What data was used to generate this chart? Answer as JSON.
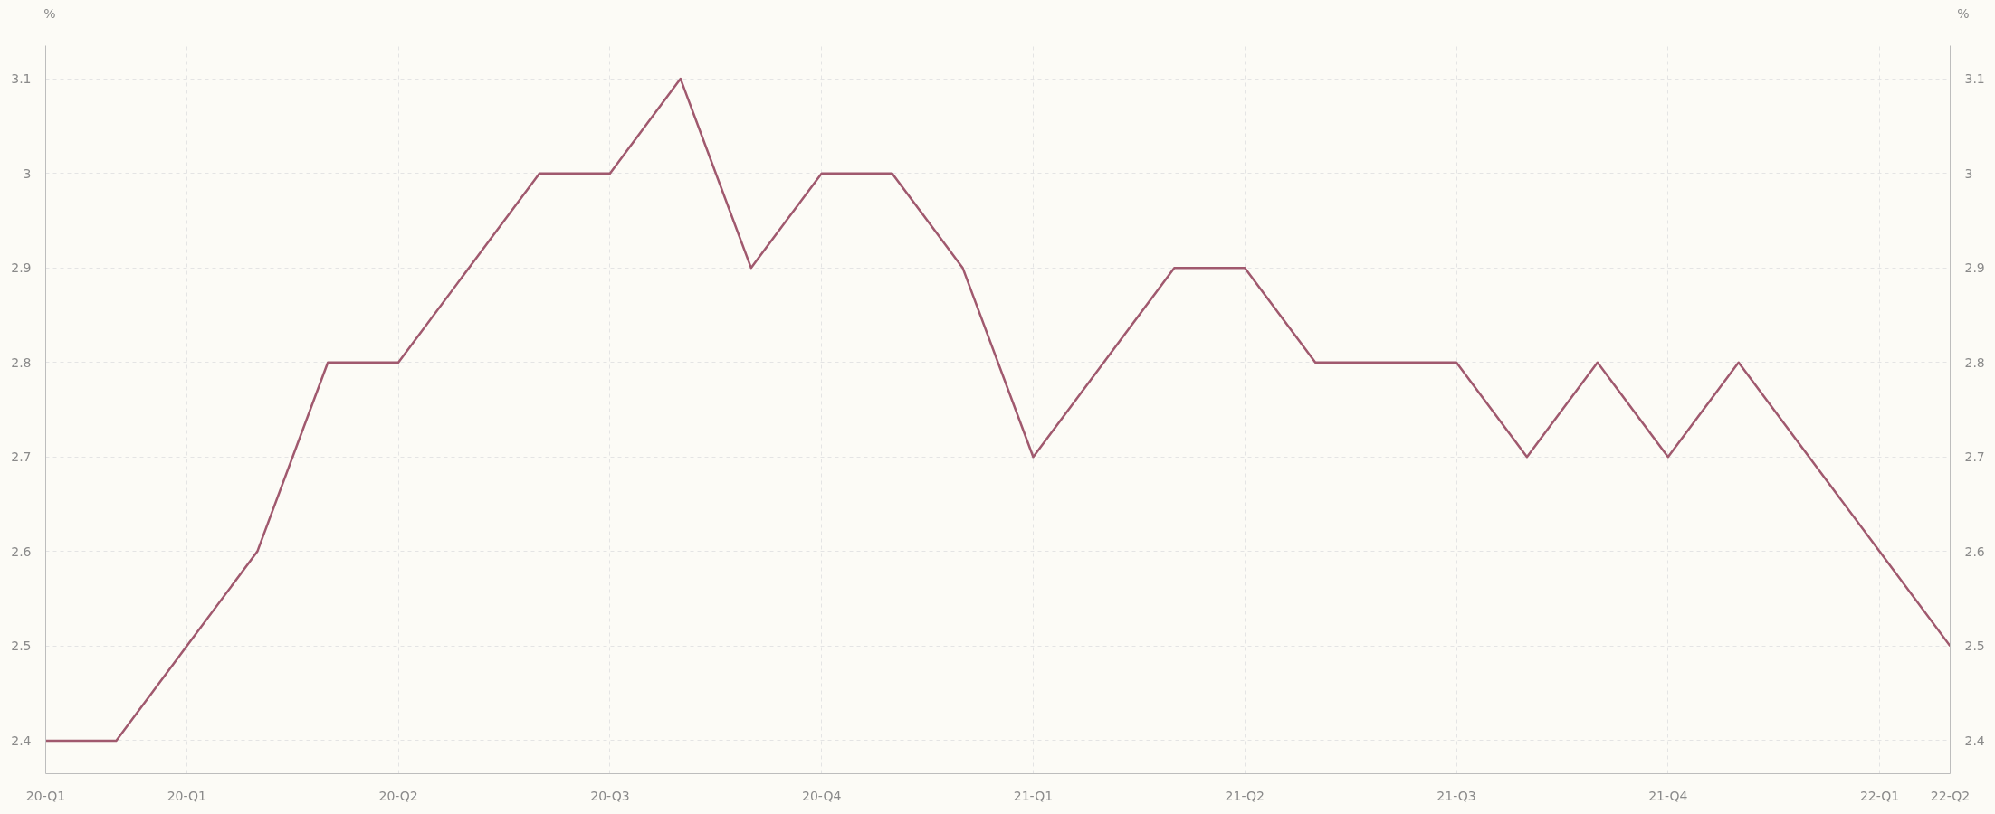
{
  "chart_data": {
    "type": "line",
    "ylabel": "%",
    "y2label": "%",
    "categories": [
      "20-Q1",
      null,
      "20-Q1",
      null,
      null,
      "20-Q2",
      null,
      null,
      "20-Q3",
      null,
      null,
      "20-Q4",
      null,
      null,
      "21-Q1",
      null,
      null,
      "21-Q2",
      null,
      null,
      "21-Q3",
      null,
      null,
      "21-Q4",
      null,
      null,
      "22-Q1",
      "22-Q2"
    ],
    "series": [
      {
        "color": "#a0596e",
        "values": [
          2.4,
          2.4,
          2.5,
          2.6,
          2.8,
          2.8,
          2.9,
          3.0,
          3.0,
          3.1,
          2.9,
          3.0,
          3.0,
          2.9,
          2.7,
          2.8,
          2.9,
          2.9,
          2.8,
          2.8,
          2.8,
          2.7,
          2.8,
          2.7,
          2.8,
          2.7,
          2.6,
          2.5
        ]
      }
    ],
    "ylim": [
      2.365,
      3.135
    ],
    "yticks": [
      2.4,
      2.5,
      2.6,
      2.7,
      2.8,
      2.9,
      3,
      3.1
    ],
    "y2lim": [
      2.365,
      3.135
    ],
    "y2ticks": [
      2.4,
      2.5,
      2.6,
      2.7,
      2.8,
      2.9,
      3,
      3.1
    ],
    "grid": true,
    "line_style": "solid",
    "marker": "none"
  }
}
